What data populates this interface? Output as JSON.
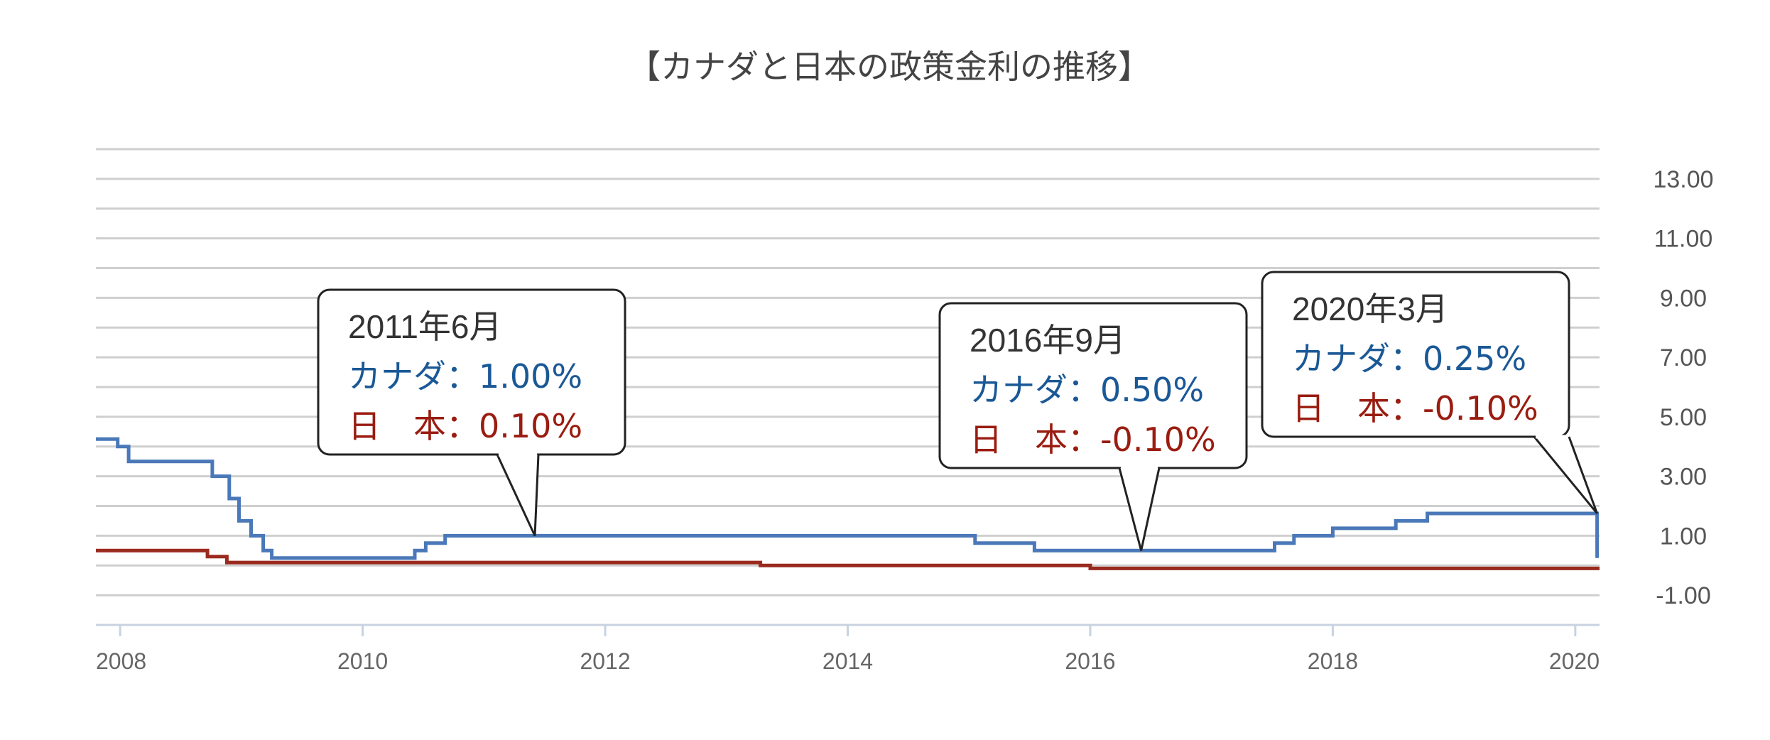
{
  "chart_data": {
    "type": "line",
    "title": "【カナダと日本の政策金利の推移】",
    "xlabel": "",
    "ylabel": "",
    "x_ticks": [
      "2008",
      "2010",
      "2012",
      "2014",
      "2016",
      "2018",
      "2020"
    ],
    "y_ticks": [
      "-1.00",
      "1.00",
      "3.00",
      "5.00",
      "7.00",
      "9.00",
      "11.00",
      "13.00"
    ],
    "xlim": [
      2007.8,
      2020.2
    ],
    "ylim": [
      -2,
      14
    ],
    "grid": true,
    "legend": "none",
    "series": [
      {
        "key": "canada",
        "color": "#4a78b8",
        "points": [
          [
            2007.8,
            4.25
          ],
          [
            2007.98,
            4.25
          ],
          [
            2007.98,
            4.0
          ],
          [
            2008.07,
            4.0
          ],
          [
            2008.07,
            3.5
          ],
          [
            2008.76,
            3.5
          ],
          [
            2008.76,
            3.0
          ],
          [
            2008.9,
            3.0
          ],
          [
            2008.9,
            2.25
          ],
          [
            2008.98,
            2.25
          ],
          [
            2008.98,
            1.5
          ],
          [
            2009.08,
            1.5
          ],
          [
            2009.08,
            1.0
          ],
          [
            2009.18,
            1.0
          ],
          [
            2009.18,
            0.5
          ],
          [
            2009.25,
            0.5
          ],
          [
            2009.25,
            0.25
          ],
          [
            2010.43,
            0.25
          ],
          [
            2010.43,
            0.5
          ],
          [
            2010.52,
            0.5
          ],
          [
            2010.52,
            0.75
          ],
          [
            2010.68,
            0.75
          ],
          [
            2010.68,
            1.0
          ],
          [
            2015.05,
            1.0
          ],
          [
            2015.05,
            0.75
          ],
          [
            2015.54,
            0.75
          ],
          [
            2015.54,
            0.5
          ],
          [
            2017.52,
            0.5
          ],
          [
            2017.52,
            0.75
          ],
          [
            2017.68,
            0.75
          ],
          [
            2017.68,
            1.0
          ],
          [
            2018.0,
            1.0
          ],
          [
            2018.0,
            1.25
          ],
          [
            2018.52,
            1.25
          ],
          [
            2018.52,
            1.5
          ],
          [
            2018.78,
            1.5
          ],
          [
            2018.78,
            1.75
          ],
          [
            2020.18,
            1.75
          ],
          [
            2020.18,
            0.25
          ]
        ]
      },
      {
        "key": "japan",
        "color": "#9a2a1e",
        "points": [
          [
            2007.8,
            0.5
          ],
          [
            2008.72,
            0.5
          ],
          [
            2008.72,
            0.3
          ],
          [
            2008.88,
            0.3
          ],
          [
            2008.88,
            0.1
          ],
          [
            2013.28,
            0.1
          ],
          [
            2013.28,
            0.0
          ],
          [
            2016.0,
            0.0
          ],
          [
            2016.0,
            -0.1
          ],
          [
            2020.2,
            -0.1
          ]
        ]
      }
    ],
    "callouts": [
      {
        "date": "2011年6月",
        "canada": "カナダ：1.00%",
        "japan": "日　本：0.10%",
        "x": 2011.42,
        "y": 1.0
      },
      {
        "date": "2016年9月",
        "canada": "カナダ：0.50%",
        "japan": "日　本：-0.10%",
        "x": 2016.42,
        "y": 0.5
      },
      {
        "date": "2020年3月",
        "canada": "カナダ：0.25%",
        "japan": "日　本：-0.10%",
        "x": 2020.18,
        "y": 1.75
      }
    ]
  }
}
